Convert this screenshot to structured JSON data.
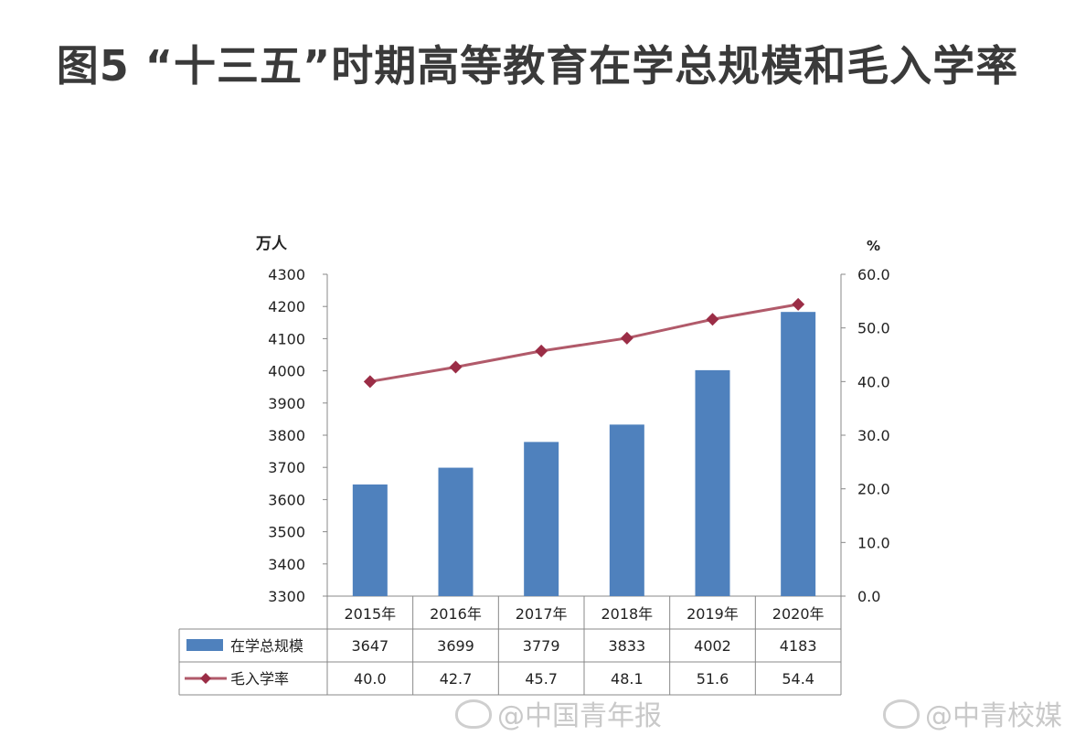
{
  "title": "图5 “十三五”时期高等教育在学总规模和毛入学率",
  "chart_data": {
    "type": "bar+line",
    "categories": [
      "2015年",
      "2016年",
      "2017年",
      "2018年",
      "2019年",
      "2020年"
    ],
    "series": [
      {
        "name": "在学总规模",
        "type": "bar",
        "axis": "left",
        "color": "#4f81bd",
        "values": [
          3647,
          3699,
          3779,
          3833,
          4002,
          4183
        ]
      },
      {
        "name": "毛入学率",
        "type": "line",
        "axis": "right",
        "color": "#b15a6a",
        "values": [
          40.0,
          42.7,
          45.7,
          48.1,
          51.6,
          54.4
        ]
      }
    ],
    "left_axis": {
      "unit": "万人",
      "min": 3300,
      "max": 4300,
      "step": 100,
      "ticks": [
        "3300",
        "3400",
        "3500",
        "3600",
        "3700",
        "3800",
        "3900",
        "4000",
        "4100",
        "4200",
        "4300"
      ]
    },
    "right_axis": {
      "unit": "%",
      "min": 0,
      "max": 60,
      "step": 10,
      "ticks": [
        "0.0",
        "10.0",
        "20.0",
        "30.0",
        "40.0",
        "50.0",
        "60.0"
      ]
    },
    "data_table": {
      "rows": [
        {
          "label": "在学总规模",
          "values": [
            "3647",
            "3699",
            "3779",
            "3833",
            "4002",
            "4183"
          ]
        },
        {
          "label": "毛入学率",
          "values": [
            "40.0",
            "42.7",
            "45.7",
            "48.1",
            "51.6",
            "54.4"
          ]
        }
      ]
    },
    "grid": false
  },
  "watermarks": [
    "@中国青年报",
    "@中青校媒"
  ]
}
